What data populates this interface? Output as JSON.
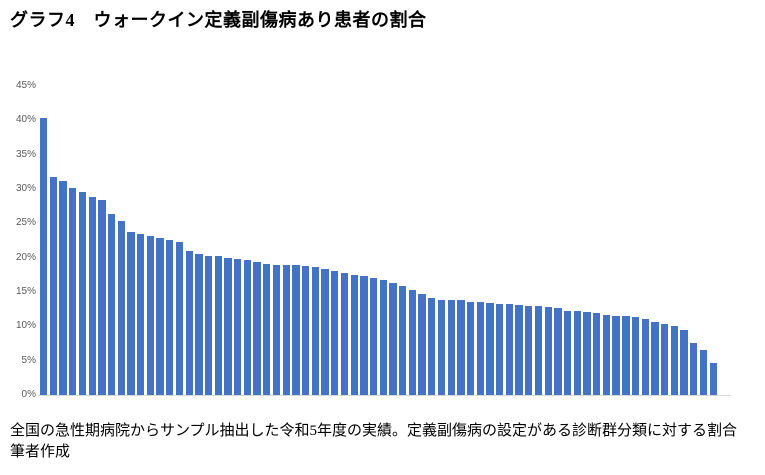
{
  "page": {
    "title": "グラフ4　ウォークイン定義副傷病あり患者の割合",
    "footnote_line1": "全国の急性期病院からサンプル抽出した令和5年度の実績。定義副傷病の設定がある診断群分類に対する割合",
    "footnote_line2": "筆者作成"
  },
  "chart_data": {
    "type": "bar",
    "title": "グラフ4　ウォークイン定義副傷病あり患者の割合",
    "xlabel": "",
    "ylabel": "",
    "ylim": [
      0,
      45
    ],
    "yticks": [
      0,
      5,
      10,
      15,
      20,
      25,
      30,
      35,
      40,
      45
    ],
    "ytick_labels": [
      "0%",
      "5%",
      "10%",
      "15%",
      "20%",
      "25%",
      "30%",
      "35%",
      "40%",
      "45%"
    ],
    "grid": "off",
    "legend": "none",
    "x_tick_labels_visible": false,
    "bar_color": "#4472C4",
    "axis_line_color": "#D9D9D9",
    "tick_label_color": "#595959",
    "values_pct": [
      40.4,
      31.7,
      31.1,
      30.1,
      29.6,
      28.9,
      28.4,
      26.4,
      25.3,
      23.8,
      23.4,
      23.1,
      22.8,
      22.6,
      22.3,
      21.0,
      20.5,
      20.3,
      20.2,
      20.0,
      19.8,
      19.7,
      19.4,
      19.1,
      19.0,
      18.9,
      18.9,
      18.8,
      18.6,
      18.4,
      18.0,
      17.8,
      17.5,
      17.3,
      17.0,
      16.7,
      16.3,
      15.9,
      15.3,
      14.7,
      14.1,
      13.9,
      13.9,
      13.8,
      13.6,
      13.5,
      13.4,
      13.3,
      13.2,
      13.1,
      12.9,
      12.9,
      12.8,
      12.6,
      12.3,
      12.2,
      12.1,
      11.9,
      11.7,
      11.5,
      11.5,
      11.4,
      11.0,
      10.7,
      10.4,
      10.0,
      9.5,
      7.6,
      6.6,
      4.6
    ]
  }
}
